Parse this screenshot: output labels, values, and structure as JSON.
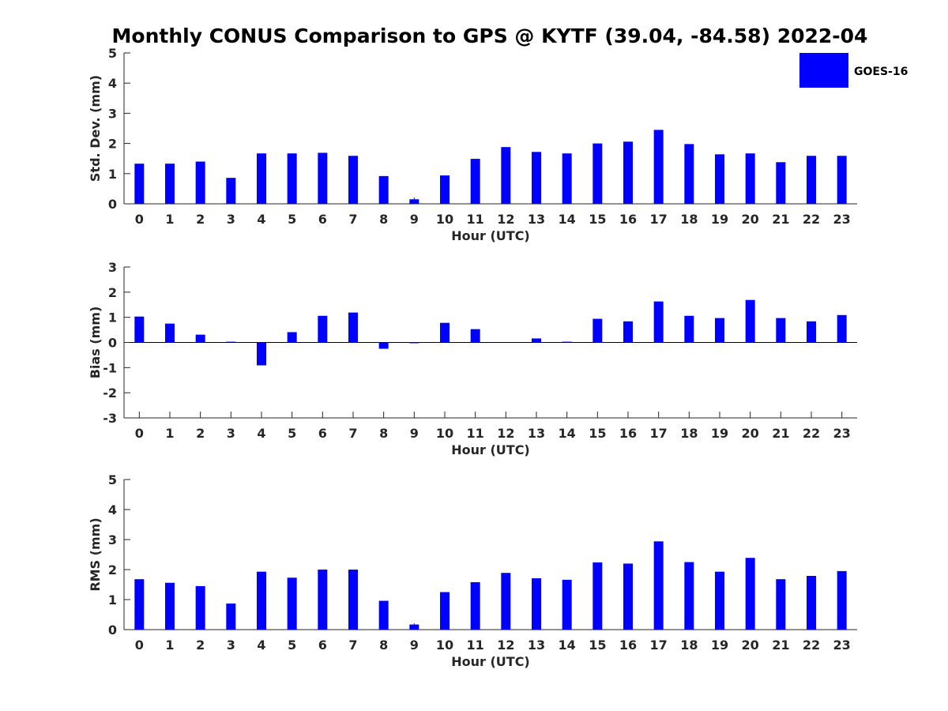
{
  "chart_data": {
    "title": "Monthly CONUS Comparison to GPS @ KYTF (39.04, -84.58) 2022-04",
    "legend": {
      "entries": [
        "GOES-16"
      ],
      "placement": "top-right"
    },
    "bar_color": "#0000ff",
    "panels": [
      {
        "type": "bar",
        "categories": [
          "0",
          "1",
          "2",
          "3",
          "4",
          "5",
          "6",
          "7",
          "8",
          "9",
          "10",
          "11",
          "12",
          "13",
          "14",
          "15",
          "16",
          "17",
          "18",
          "19",
          "20",
          "21",
          "22",
          "23"
        ],
        "series": [
          {
            "name": "GOES-16",
            "values": [
              1.33,
              1.33,
              1.4,
              0.86,
              1.67,
              1.67,
              1.69,
              1.59,
              0.92,
              0.15,
              0.94,
              1.49,
              1.88,
              1.72,
              1.67,
              2.0,
              2.06,
              2.45,
              1.98,
              1.64,
              1.67,
              1.38,
              1.59,
              1.59
            ]
          }
        ],
        "xlabel": "Hour (UTC)",
        "ylabel": "Std. Dev. (mm)",
        "ylim": [
          0,
          5
        ],
        "yticks": [
          "0",
          "1",
          "2",
          "3",
          "4",
          "5"
        ],
        "grid": false
      },
      {
        "type": "bar",
        "categories": [
          "0",
          "1",
          "2",
          "3",
          "4",
          "5",
          "6",
          "7",
          "8",
          "9",
          "10",
          "11",
          "12",
          "13",
          "14",
          "15",
          "16",
          "17",
          "18",
          "19",
          "20",
          "21",
          "22",
          "23"
        ],
        "series": [
          {
            "name": "GOES-16",
            "values": [
              1.03,
              0.75,
              0.31,
              0.03,
              -0.91,
              0.41,
              1.06,
              1.19,
              -0.25,
              -0.03,
              0.78,
              0.53,
              0.0,
              0.16,
              0.03,
              0.94,
              0.84,
              1.63,
              1.06,
              0.97,
              1.69,
              0.97,
              0.84,
              1.09
            ]
          }
        ],
        "xlabel": "Hour (UTC)",
        "ylabel": "Bias (mm)",
        "ylim": [
          -3,
          3
        ],
        "yticks": [
          "-3",
          "-2",
          "-1",
          "0",
          "1",
          "2",
          "3"
        ],
        "grid": false
      },
      {
        "type": "bar",
        "categories": [
          "0",
          "1",
          "2",
          "3",
          "4",
          "5",
          "6",
          "7",
          "8",
          "9",
          "10",
          "11",
          "12",
          "13",
          "14",
          "15",
          "16",
          "17",
          "18",
          "19",
          "20",
          "21",
          "22",
          "23"
        ],
        "series": [
          {
            "name": "GOES-16",
            "values": [
              1.68,
              1.56,
              1.45,
              0.87,
              1.93,
              1.73,
              2.0,
              2.0,
              0.96,
              0.17,
              1.25,
              1.58,
              1.89,
              1.71,
              1.66,
              2.24,
              2.2,
              2.94,
              2.25,
              1.93,
              2.39,
              1.68,
              1.79,
              1.95
            ]
          }
        ],
        "xlabel": "Hour (UTC)",
        "ylabel": "RMS (mm)",
        "ylim": [
          0,
          5
        ],
        "yticks": [
          "0",
          "1",
          "2",
          "3",
          "4",
          "5"
        ],
        "grid": false
      }
    ]
  }
}
